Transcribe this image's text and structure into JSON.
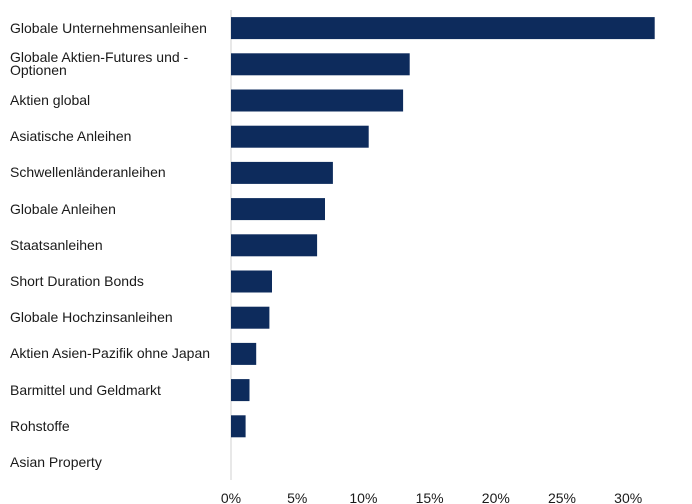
{
  "chart_data": {
    "type": "bar",
    "orientation": "horizontal",
    "categories": [
      "Globale Unternehmensanleihen",
      "Globale Aktien-Futures und -Optionen",
      "Aktien global",
      "Asiatische Anleihen",
      "Schwellenländeranleihen",
      "Globale Anleihen",
      "Staatsanleihen",
      "Short Duration Bonds",
      "Globale Hochzinsanleihen",
      "Aktien Asien-Pazifik ohne Japan",
      "Barmittel und Geldmarkt",
      "Rohstoffe",
      "Asian Property"
    ],
    "values": [
      32.0,
      13.5,
      13.0,
      10.4,
      7.7,
      7.1,
      6.5,
      3.1,
      2.9,
      1.9,
      1.4,
      1.1,
      0.0
    ],
    "x_ticks": [
      "0%",
      "5%",
      "10%",
      "15%",
      "20%",
      "25%",
      "30%"
    ],
    "xlim": [
      0,
      35
    ],
    "title": "",
    "xlabel": "",
    "ylabel": "",
    "bar_color": "#0d2b5c",
    "grid": false,
    "legend": "none"
  }
}
